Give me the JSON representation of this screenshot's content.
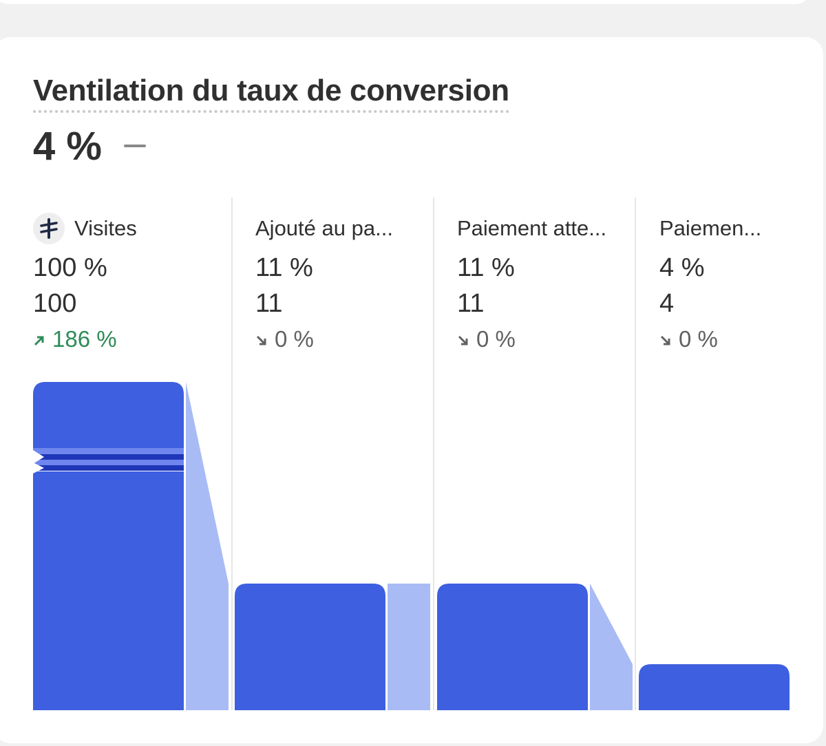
{
  "card": {
    "title": "Ventilation du taux de conversion",
    "metric_value": "4 %"
  },
  "colors": {
    "bar": "#3d5fe0",
    "connector": "#a9bbf5",
    "positive": "#2e8b57",
    "neutral": "#616161"
  },
  "steps": [
    {
      "label": "Visites",
      "percent": "100 %",
      "count": "100",
      "change": "186 %",
      "trend": "up",
      "icon": "sessions-icon"
    },
    {
      "label": "Ajouté au pa...",
      "percent": "11 %",
      "count": "11",
      "change": "0 %",
      "trend": "down"
    },
    {
      "label": "Paiement atte...",
      "percent": "11 %",
      "count": "11",
      "change": "0 %",
      "trend": "down"
    },
    {
      "label": "Paiemen...",
      "percent": "4 %",
      "count": "4",
      "change": "0 %",
      "trend": "down"
    }
  ],
  "chart_data": {
    "type": "bar",
    "categories": [
      "Visites",
      "Ajouté au pa...",
      "Paiement atte...",
      "Paiemen..."
    ],
    "series": [
      {
        "values": [
          100,
          11,
          11,
          4
        ]
      }
    ],
    "y_axis_break": true
  }
}
